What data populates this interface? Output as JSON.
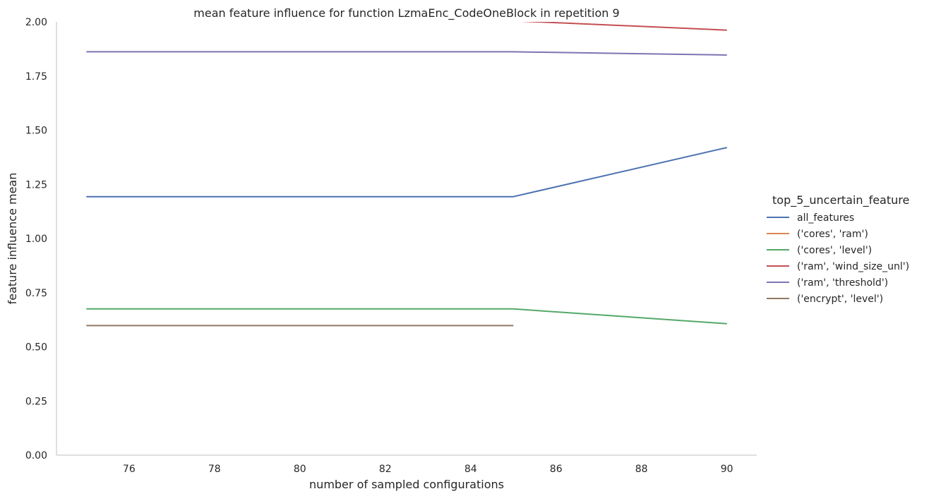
{
  "chart_data": {
    "type": "line",
    "title": "mean feature influence for function LzmaEnc_CodeOneBlock in repetition 9",
    "xlabel": "number of sampled configurations",
    "ylabel": "feature influence mean",
    "xlim": [
      74.3,
      90.7
    ],
    "ylim": [
      0,
      2
    ],
    "xticks": [
      76,
      78,
      80,
      82,
      84,
      86,
      88,
      90
    ],
    "yticks": [
      0,
      0.25,
      0.5,
      0.75,
      1.0,
      1.25,
      1.5,
      1.75,
      2.0
    ],
    "ytick_labels": [
      "0.00",
      "0.25",
      "0.50",
      "0.75",
      "1.00",
      "1.25",
      "1.50",
      "1.75",
      "2.00"
    ],
    "grid": false,
    "legend": {
      "title": "top_5_uncertain_feature",
      "placement": "right"
    },
    "series": [
      {
        "name": "all_features",
        "color": "#4c72b0",
        "points": [
          [
            75,
            1.193
          ],
          [
            85,
            1.193
          ],
          [
            90,
            1.42
          ]
        ]
      },
      {
        "name": "('cores', 'ram')",
        "color": "#dd8452",
        "points": []
      },
      {
        "name": "('cores', 'level')",
        "color": "#55a868",
        "points": [
          [
            75,
            0.675
          ],
          [
            85,
            0.675
          ],
          [
            90,
            0.607
          ]
        ]
      },
      {
        "name": "('ram', 'wind_size_unl')",
        "color": "#c44e52",
        "points": [
          [
            75,
            2.1
          ],
          [
            85,
            2.005
          ],
          [
            90,
            1.962
          ]
        ]
      },
      {
        "name": "('ram', 'threshold')",
        "color": "#8172b3",
        "points": [
          [
            75,
            1.862
          ],
          [
            85,
            1.862
          ],
          [
            90,
            1.847
          ]
        ]
      },
      {
        "name": "('encrypt', 'level')",
        "color": "#937860",
        "points": [
          [
            75,
            0.598
          ],
          [
            85,
            0.598
          ]
        ]
      }
    ]
  }
}
